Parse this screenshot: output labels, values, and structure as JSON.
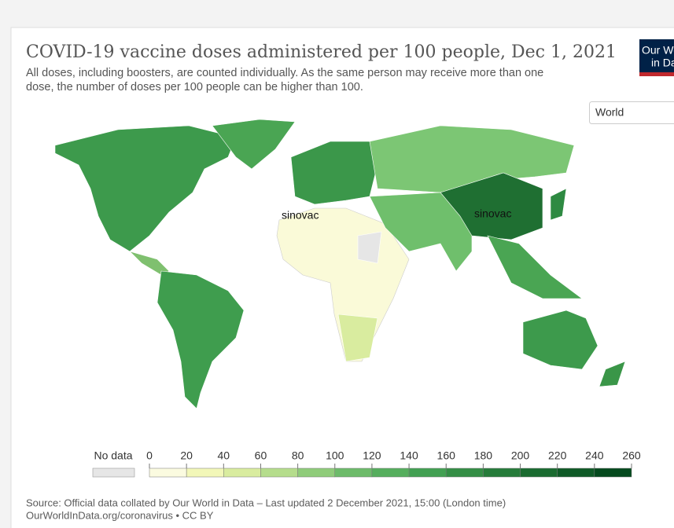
{
  "header": {
    "title": "COVID-19 vaccine doses administered per 100 people, Dec 1, 2021",
    "subtitle_lines": [
      "All doses, including boosters, are counted individually. As the same person may receive more than one",
      "dose, the number of doses per 100 people can be higher than 100."
    ],
    "logo_lines": [
      "Our World",
      "in Data"
    ]
  },
  "controls": {
    "region_select": "World"
  },
  "annotations": [
    "sinovac",
    "sinovac"
  ],
  "legend": {
    "no_data": "No data",
    "ticks": [
      0,
      20,
      40,
      60,
      80,
      100,
      120,
      140,
      160,
      180,
      200,
      220,
      240,
      260
    ],
    "colors": [
      "#fbfbe0",
      "#f2f7b8",
      "#d9ec9f",
      "#b5dd8c",
      "#8fcc7a",
      "#6dbb6a",
      "#55ae5d",
      "#42a052",
      "#348e45",
      "#267c3a",
      "#1a6b30",
      "#0f5a27",
      "#054a1e"
    ]
  },
  "footer": {
    "source": "Source: Official data collated by Our World in Data – Last updated 2 December 2021, 15:00 (London time)",
    "link": "OurWorldInData.org/coronavirus • CC BY"
  }
}
